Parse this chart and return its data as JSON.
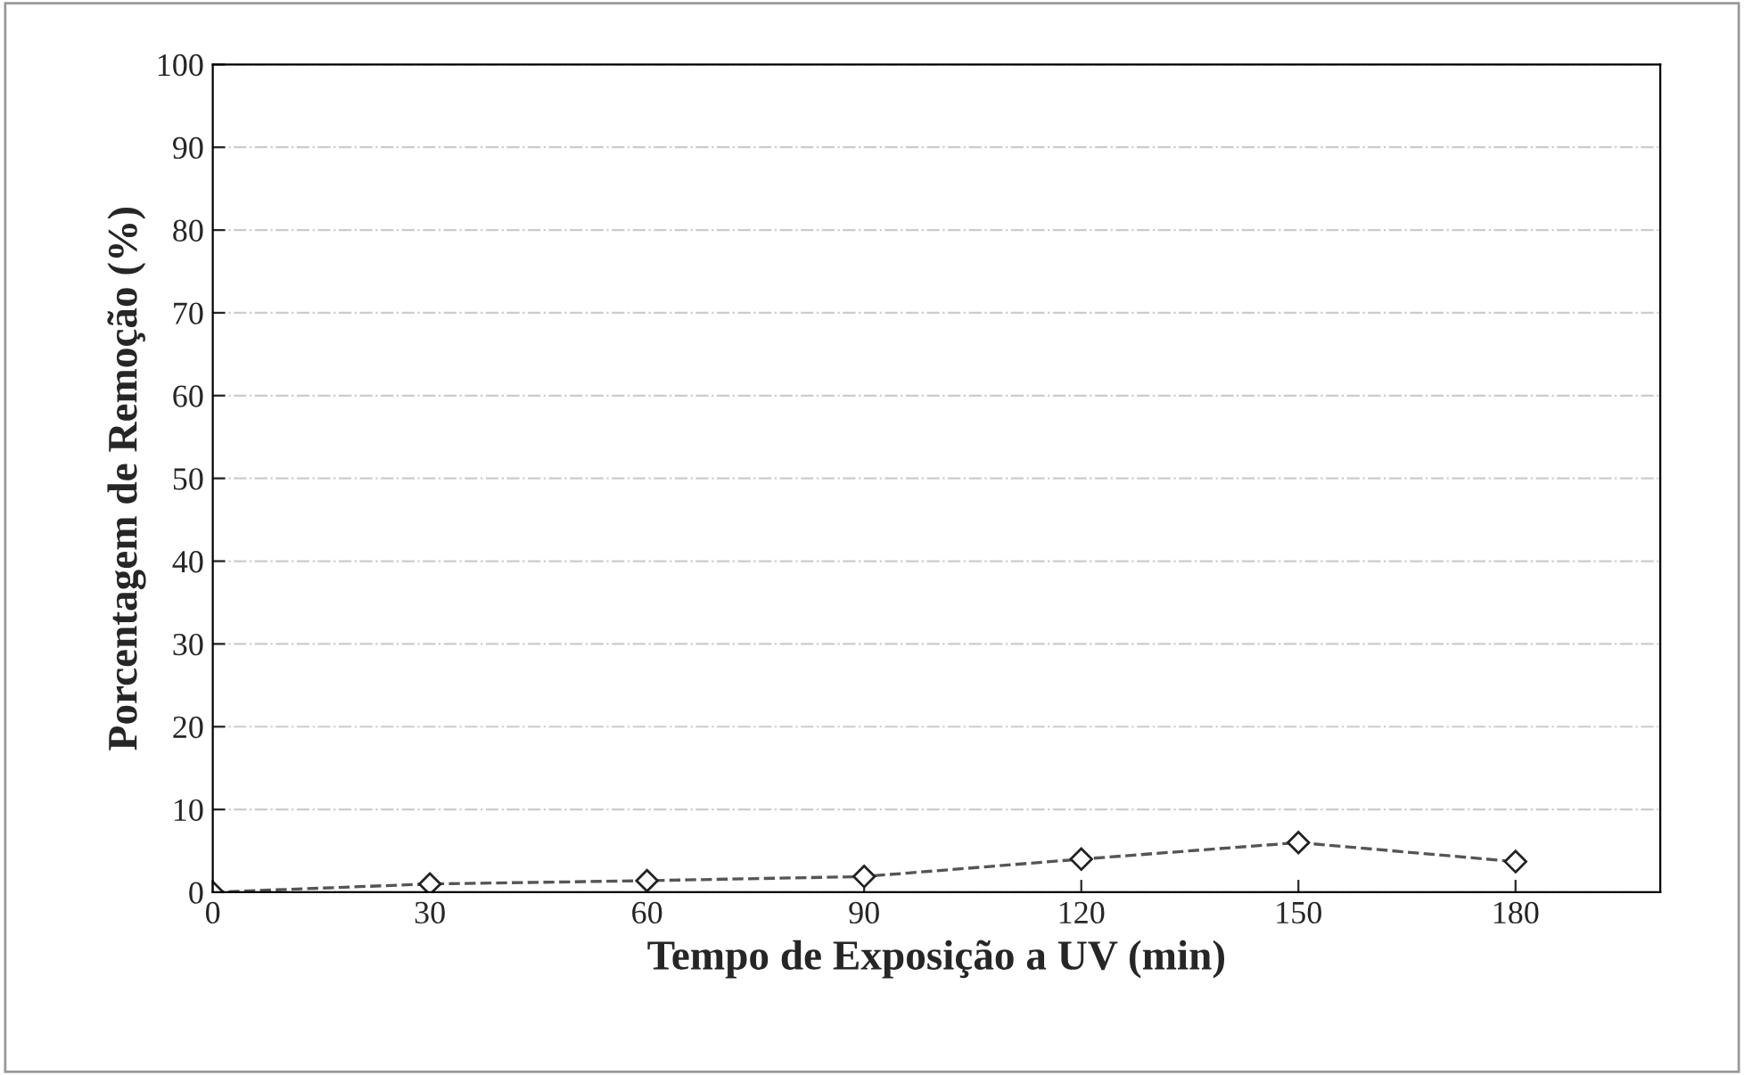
{
  "chart_data": {
    "type": "line",
    "xlabel": "Tempo de Exposição a UV (min)",
    "ylabel": "Porcentagem de Remoção (%)",
    "x": [
      0,
      30,
      60,
      90,
      120,
      150,
      180
    ],
    "series": [
      {
        "color": "#555555",
        "values": [
          0,
          1.0,
          1.4,
          1.9,
          4.0,
          6.0,
          3.7
        ]
      }
    ],
    "xlim": [
      0,
      200
    ],
    "xticks": [
      0,
      30,
      60,
      90,
      120,
      150,
      180
    ],
    "ylim": [
      0,
      100
    ],
    "yticks": [
      0,
      10,
      20,
      30,
      40,
      50,
      60,
      70,
      80,
      90,
      100
    ],
    "grid": "y",
    "marker": "diamond",
    "line_style": "dashed",
    "legend": false
  }
}
